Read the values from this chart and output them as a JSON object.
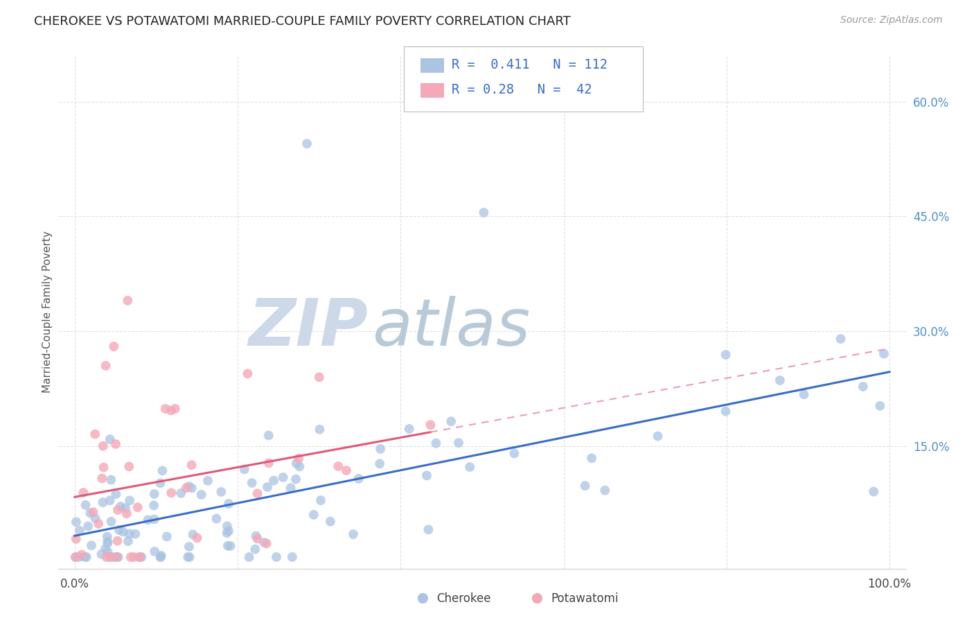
{
  "title": "CHEROKEE VS POTAWATOMI MARRIED-COUPLE FAMILY POVERTY CORRELATION CHART",
  "source": "Source: ZipAtlas.com",
  "ylabel": "Married-Couple Family Poverty",
  "xlim": [
    -0.02,
    1.02
  ],
  "ylim": [
    -0.01,
    0.66
  ],
  "cherokee_R": 0.411,
  "cherokee_N": 112,
  "potawatomi_R": 0.28,
  "potawatomi_N": 42,
  "cherokee_color": "#aac4e2",
  "potawatomi_color": "#f4a8b8",
  "cherokee_line_color": "#3a6cc8",
  "potawatomi_line_color": "#e05878",
  "potawatomi_dash_color": "#e8a0b0",
  "legend_text_color": "#3a6cc8",
  "title_color": "#222222",
  "source_color": "#999999",
  "watermark_zip_color": "#c8d8ea",
  "watermark_atlas_color": "#b8ccdc",
  "background_color": "#ffffff",
  "grid_color": "#e0e0e0",
  "right_tick_color": "#5090c8",
  "ytick_vals": [
    0.15,
    0.3,
    0.45,
    0.6
  ],
  "ytick_labels": [
    "15.0%",
    "30.0%",
    "45.0%",
    "60.0%"
  ]
}
